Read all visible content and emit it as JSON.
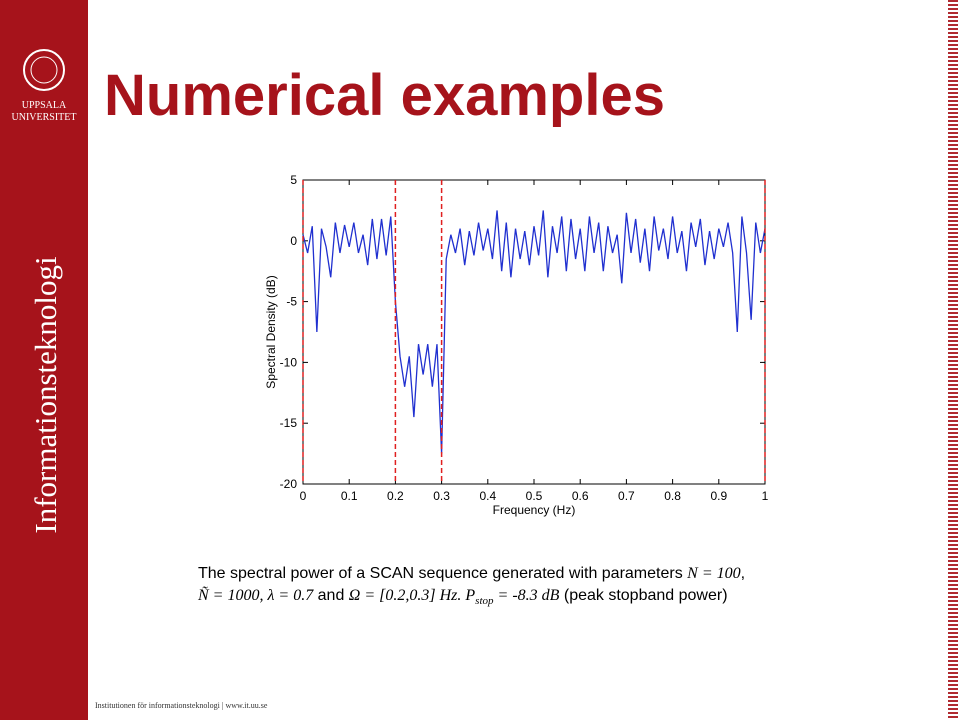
{
  "logo": {
    "lines": [
      "UPPSALA",
      "UNIVERSITET"
    ]
  },
  "sidebar": "Informationsteknologi",
  "title": "Numerical examples",
  "footer": "Institutionen för informationsteknologi | www.it.uu.se",
  "caption": [
    [
      {
        "text": "The spectral power of a SCAN sequence generated with parameters ",
        "style": "normal"
      },
      {
        "text": "N = 100",
        "style": "italic"
      },
      {
        "text": ",",
        "style": "normal"
      }
    ],
    [
      {
        "text": "Ñ = 1000, λ = 0.7",
        "style": "italic"
      },
      {
        "text": " and ",
        "style": "normal"
      },
      {
        "text": "Ω = [0.2,0.3] Hz. P",
        "style": "italic"
      },
      {
        "text": "stop",
        "style": "sub"
      },
      {
        "text": " = -8.3 dB",
        "style": "italic"
      },
      {
        "text": " (peak stopband power)",
        "style": "normal"
      }
    ]
  ],
  "chart_data": {
    "type": "line",
    "xlabel": "Frequency (Hz)",
    "ylabel": "Spectral Density (dB)",
    "xlim": [
      0,
      1
    ],
    "ylim": [
      -20,
      5
    ],
    "xticks": [
      0,
      0.1,
      0.2,
      0.3,
      0.4,
      0.5,
      0.6,
      0.7,
      0.8,
      0.9,
      1
    ],
    "yticks": [
      -20,
      -15,
      -10,
      -5,
      0,
      5
    ],
    "markers": [
      0,
      0.2,
      0.3,
      1
    ],
    "marker_color": "#e02020",
    "x": [
      0,
      0.01,
      0.02,
      0.03,
      0.04,
      0.05,
      0.06,
      0.07,
      0.08,
      0.09,
      0.1,
      0.11,
      0.12,
      0.13,
      0.14,
      0.15,
      0.16,
      0.17,
      0.18,
      0.19,
      0.2,
      0.21,
      0.22,
      0.23,
      0.24,
      0.25,
      0.26,
      0.27,
      0.28,
      0.29,
      0.3,
      0.31,
      0.32,
      0.33,
      0.34,
      0.35,
      0.36,
      0.37,
      0.38,
      0.39,
      0.4,
      0.41,
      0.42,
      0.43,
      0.44,
      0.45,
      0.46,
      0.47,
      0.48,
      0.49,
      0.5,
      0.51,
      0.52,
      0.53,
      0.54,
      0.55,
      0.56,
      0.57,
      0.58,
      0.59,
      0.6,
      0.61,
      0.62,
      0.63,
      0.64,
      0.65,
      0.66,
      0.67,
      0.68,
      0.69,
      0.7,
      0.71,
      0.72,
      0.73,
      0.74,
      0.75,
      0.76,
      0.77,
      0.78,
      0.79,
      0.8,
      0.81,
      0.82,
      0.83,
      0.84,
      0.85,
      0.86,
      0.87,
      0.88,
      0.89,
      0.9,
      0.91,
      0.92,
      0.93,
      0.94,
      0.95,
      0.96,
      0.97,
      0.98,
      0.99,
      1
    ],
    "series": [
      {
        "color": "#2030d0",
        "values": [
          0.5,
          -1,
          1.2,
          -7.5,
          1,
          -0.5,
          -3,
          1.5,
          -1,
          1.3,
          -0.5,
          1.5,
          -1,
          0.5,
          -2,
          1.8,
          -1.5,
          1.8,
          -1.2,
          2,
          -5,
          -9.5,
          -12,
          -9.5,
          -14.5,
          -8.5,
          -11,
          -8.5,
          -12,
          -8.5,
          -17.5,
          -1.5,
          0.5,
          -1,
          1,
          -2,
          0.8,
          -1.2,
          1.5,
          -0.8,
          1,
          -1.5,
          2.5,
          -2.5,
          1.5,
          -3,
          1,
          -1.5,
          0.8,
          -2,
          1.2,
          -1.2,
          2.5,
          -3,
          1.2,
          -1,
          2,
          -2.5,
          1.8,
          -1.5,
          1,
          -2.5,
          2,
          -1,
          1.5,
          -2.5,
          1.2,
          -1,
          0.5,
          -3.5,
          2.3,
          -1,
          1.8,
          -1.8,
          1,
          -2.5,
          2,
          -0.8,
          1,
          -1.5,
          2,
          -1,
          0.8,
          -2.5,
          1.5,
          -0.5,
          1.8,
          -2,
          0.8,
          -1.5,
          1,
          -0.5,
          1.5,
          -1,
          -7.5,
          2,
          -1,
          -6.5,
          1.5,
          -1,
          1
        ]
      }
    ]
  }
}
